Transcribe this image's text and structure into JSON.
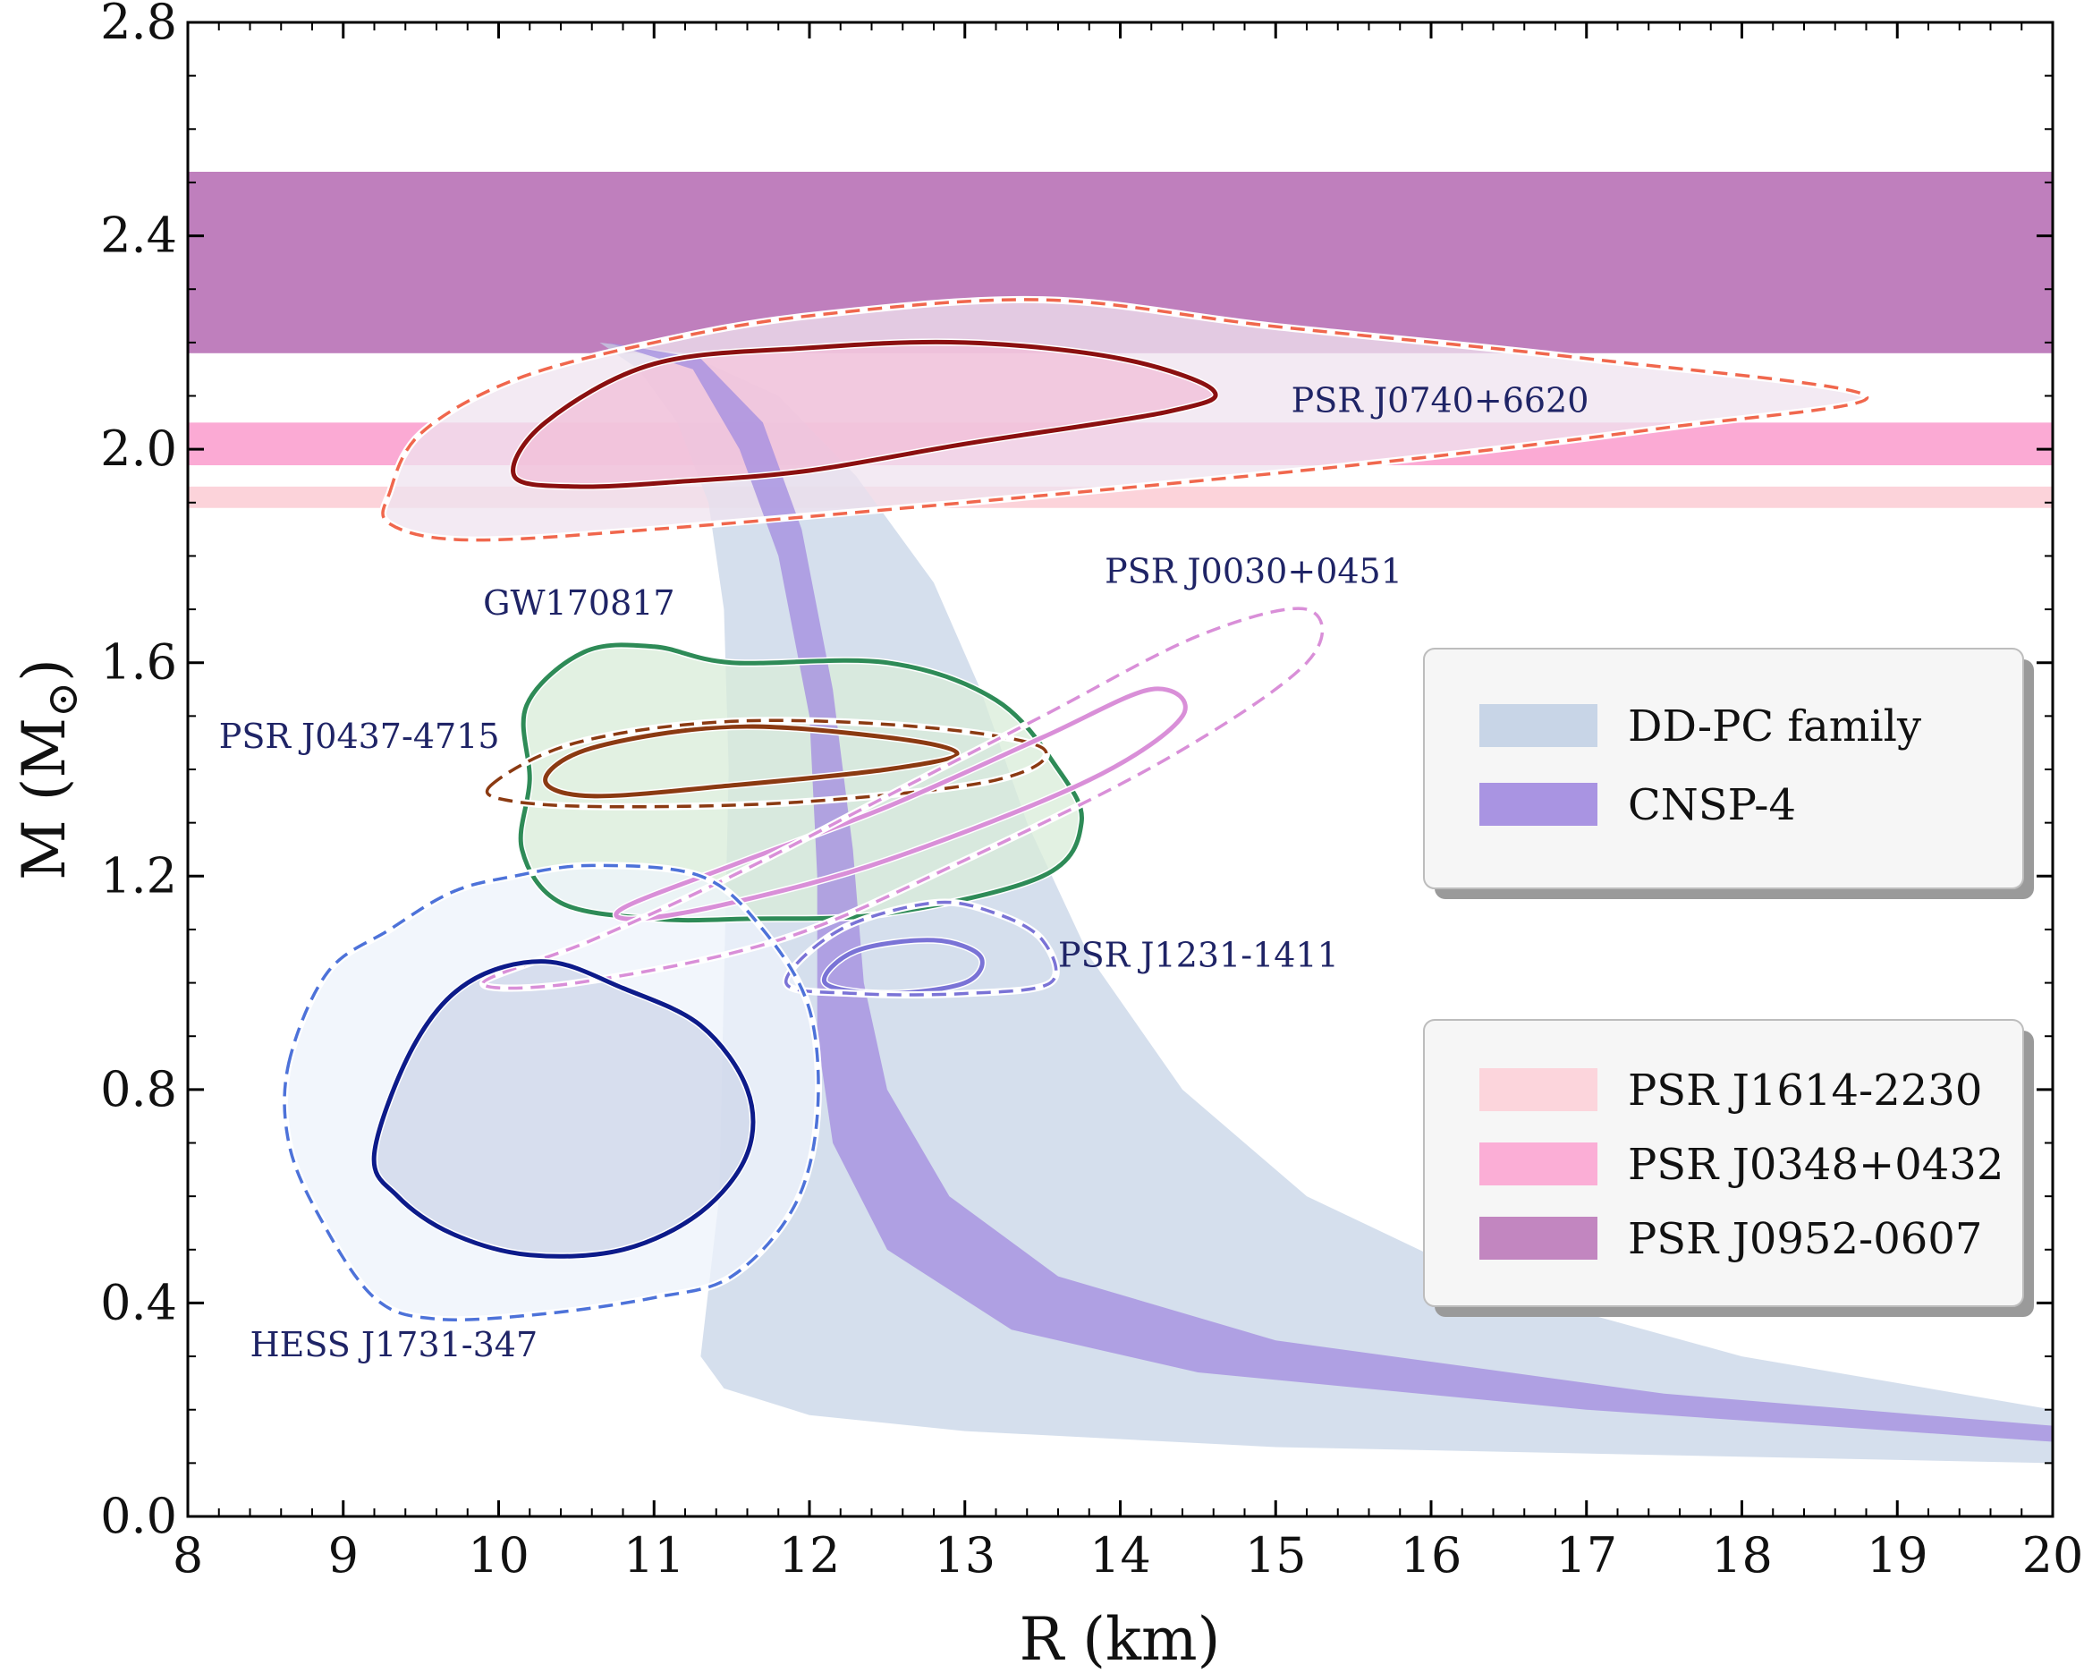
{
  "chart_data": {
    "type": "scatter",
    "title": "",
    "xlabel": "R (km)",
    "ylabel_main": "M (M",
    "ylabel_close": ")",
    "xlim": [
      8,
      20
    ],
    "ylim": [
      0.0,
      2.8
    ],
    "x_ticks": [
      8,
      9,
      10,
      11,
      12,
      13,
      14,
      15,
      16,
      17,
      18,
      19,
      20
    ],
    "x_tick_labels": [
      "8",
      "9",
      "10",
      "11",
      "12",
      "13",
      "14",
      "15",
      "16",
      "17",
      "18",
      "19",
      "20"
    ],
    "y_ticks": [
      0.0,
      0.4,
      0.8,
      1.2,
      1.6,
      2.0,
      2.4,
      2.8
    ],
    "y_tick_labels": [
      "0.0",
      "0.4",
      "0.8",
      "1.2",
      "1.6",
      "2.0",
      "2.4",
      "2.8"
    ],
    "colors": {
      "dd_pc": "#c5d3e6",
      "cnsp": "#a48ee0",
      "j1614": "#fcd3da",
      "j0348": "#fbaad4",
      "j0952": "#bf7fbd",
      "j0740_inner": "#8b1010",
      "j0740_outer": "#f0674d",
      "gw": "#2e8b57",
      "j0437": "#8b3a12",
      "j0030": "#d98fd8",
      "j1231": "#7a73d6",
      "hess_inner": "#0d1b8a",
      "hess_outer": "#4d72d9",
      "annotation": "#1f2466"
    },
    "mass_bands": [
      {
        "name": "PSR J1614-2230",
        "mass_range": [
          1.89,
          1.93
        ],
        "color": "#fcd3da"
      },
      {
        "name": "PSR J0348+0432",
        "mass_range": [
          1.97,
          2.05
        ],
        "color": "#fbaad4"
      },
      {
        "name": "PSR J0952-0607",
        "mass_range": [
          2.18,
          2.52
        ],
        "color": "#bf7fbd"
      }
    ],
    "dd_pc_band": {
      "left": [
        [
          10.65,
          2.2
        ],
        [
          10.9,
          2.15
        ],
        [
          11.15,
          2.05
        ],
        [
          11.35,
          1.9
        ],
        [
          11.45,
          1.7
        ],
        [
          11.48,
          1.4
        ],
        [
          11.45,
          1.0
        ],
        [
          11.42,
          0.6
        ],
        [
          11.3,
          0.3
        ],
        [
          11.45,
          0.24
        ],
        [
          12.0,
          0.19
        ],
        [
          13.0,
          0.16
        ],
        [
          15.0,
          0.13
        ],
        [
          20.0,
          0.1
        ]
      ],
      "right": [
        [
          10.65,
          2.2
        ],
        [
          11.2,
          2.18
        ],
        [
          11.8,
          2.1
        ],
        [
          12.3,
          1.95
        ],
        [
          12.8,
          1.75
        ],
        [
          13.1,
          1.55
        ],
        [
          13.4,
          1.3
        ],
        [
          13.8,
          1.05
        ],
        [
          14.4,
          0.8
        ],
        [
          15.2,
          0.6
        ],
        [
          16.5,
          0.42
        ],
        [
          18.0,
          0.3
        ],
        [
          20.0,
          0.2
        ]
      ]
    },
    "cnsp_band": {
      "left": [
        [
          10.7,
          2.2
        ],
        [
          11.25,
          2.15
        ],
        [
          11.55,
          2.0
        ],
        [
          11.8,
          1.8
        ],
        [
          12.0,
          1.5
        ],
        [
          12.05,
          1.2
        ],
        [
          12.05,
          0.9
        ],
        [
          12.15,
          0.7
        ],
        [
          12.5,
          0.5
        ],
        [
          13.3,
          0.35
        ],
        [
          14.5,
          0.27
        ],
        [
          17.0,
          0.2
        ],
        [
          20.0,
          0.14
        ]
      ],
      "right": [
        [
          10.7,
          2.2
        ],
        [
          11.3,
          2.17
        ],
        [
          11.7,
          2.05
        ],
        [
          11.95,
          1.85
        ],
        [
          12.15,
          1.55
        ],
        [
          12.28,
          1.25
        ],
        [
          12.35,
          1.0
        ],
        [
          12.5,
          0.8
        ],
        [
          12.9,
          0.6
        ],
        [
          13.6,
          0.45
        ],
        [
          15.0,
          0.33
        ],
        [
          17.5,
          0.23
        ],
        [
          20.0,
          0.17
        ]
      ]
    },
    "contours": [
      {
        "name": "PSR J0740+6620 outer",
        "style": "dashed",
        "color": "#f0674d",
        "fill": "#efe3ef",
        "points": [
          [
            9.3,
            1.92
          ],
          [
            9.5,
            2.03
          ],
          [
            10.1,
            2.13
          ],
          [
            11.0,
            2.2
          ],
          [
            12.0,
            2.25
          ],
          [
            13.5,
            2.28
          ],
          [
            15.0,
            2.23
          ],
          [
            17.0,
            2.17
          ],
          [
            18.8,
            2.1
          ],
          [
            17.5,
            2.04
          ],
          [
            15.5,
            1.97
          ],
          [
            13.0,
            1.9
          ],
          [
            11.0,
            1.85
          ],
          [
            9.8,
            1.83
          ],
          [
            9.3,
            1.86
          ]
        ]
      },
      {
        "name": "PSR J0740+6620 inner",
        "style": "solid",
        "color": "#8b1010",
        "fill": "#f2bed8",
        "points": [
          [
            10.1,
            1.95
          ],
          [
            10.3,
            2.05
          ],
          [
            11.0,
            2.16
          ],
          [
            12.0,
            2.19
          ],
          [
            13.0,
            2.2
          ],
          [
            14.0,
            2.17
          ],
          [
            14.6,
            2.11
          ],
          [
            14.3,
            2.07
          ],
          [
            13.0,
            2.01
          ],
          [
            12.0,
            1.96
          ],
          [
            11.2,
            1.94
          ],
          [
            10.5,
            1.93
          ]
        ]
      },
      {
        "name": "GW170817",
        "style": "solid",
        "color": "#2e8b57",
        "fill": "#d8ecd8",
        "points": [
          [
            10.4,
            1.15
          ],
          [
            10.15,
            1.25
          ],
          [
            10.2,
            1.38
          ],
          [
            10.18,
            1.52
          ],
          [
            10.55,
            1.62
          ],
          [
            11.0,
            1.63
          ],
          [
            11.5,
            1.6
          ],
          [
            12.5,
            1.6
          ],
          [
            13.2,
            1.53
          ],
          [
            13.6,
            1.4
          ],
          [
            13.75,
            1.3
          ],
          [
            13.5,
            1.2
          ],
          [
            12.5,
            1.13
          ],
          [
            11.6,
            1.12
          ],
          [
            11.0,
            1.12
          ]
        ]
      },
      {
        "name": "PSR J0437-4715 inner",
        "style": "solid",
        "color": "#8b3a12",
        "fill": "none",
        "points": [
          [
            10.3,
            1.38
          ],
          [
            10.6,
            1.44
          ],
          [
            11.5,
            1.48
          ],
          [
            12.5,
            1.46
          ],
          [
            12.95,
            1.43
          ],
          [
            12.5,
            1.4
          ],
          [
            11.5,
            1.37
          ],
          [
            10.6,
            1.35
          ]
        ]
      },
      {
        "name": "PSR J0437-4715 outer",
        "style": "dashed",
        "color": "#8b3a12",
        "fill": "none",
        "points": [
          [
            9.95,
            1.37
          ],
          [
            10.5,
            1.45
          ],
          [
            11.5,
            1.49
          ],
          [
            12.7,
            1.48
          ],
          [
            13.5,
            1.44
          ],
          [
            13.2,
            1.38
          ],
          [
            12.0,
            1.34
          ],
          [
            10.8,
            1.33
          ],
          [
            10.1,
            1.34
          ]
        ]
      },
      {
        "name": "PSR J0030+0451 inner",
        "style": "solid",
        "color": "#d98fd8",
        "fill": "none",
        "points": [
          [
            10.8,
            1.14
          ],
          [
            11.5,
            1.22
          ],
          [
            12.5,
            1.33
          ],
          [
            13.5,
            1.46
          ],
          [
            14.2,
            1.55
          ],
          [
            14.4,
            1.5
          ],
          [
            13.8,
            1.38
          ],
          [
            12.5,
            1.23
          ],
          [
            11.5,
            1.15
          ],
          [
            10.9,
            1.12
          ]
        ]
      },
      {
        "name": "PSR J0030+0451 outer",
        "style": "dashed",
        "color": "#d98fd8",
        "fill": "none",
        "points": [
          [
            9.9,
            1.0
          ],
          [
            10.6,
            1.08
          ],
          [
            11.5,
            1.2
          ],
          [
            12.5,
            1.35
          ],
          [
            13.5,
            1.5
          ],
          [
            14.5,
            1.65
          ],
          [
            15.2,
            1.7
          ],
          [
            15.2,
            1.6
          ],
          [
            14.3,
            1.42
          ],
          [
            13.0,
            1.23
          ],
          [
            11.8,
            1.08
          ],
          [
            10.5,
            1.0
          ]
        ]
      },
      {
        "name": "PSR J1231-1411 inner",
        "style": "solid",
        "color": "#7a73d6",
        "fill": "none",
        "points": [
          [
            12.1,
            1.0
          ],
          [
            12.3,
            1.06
          ],
          [
            12.8,
            1.08
          ],
          [
            13.1,
            1.05
          ],
          [
            13.0,
            1.0
          ],
          [
            12.5,
            0.98
          ]
        ]
      },
      {
        "name": "PSR J1231-1411 outer",
        "style": "dashed",
        "color": "#7a73d6",
        "fill": "none",
        "points": [
          [
            11.85,
            1.0
          ],
          [
            12.2,
            1.1
          ],
          [
            12.8,
            1.15
          ],
          [
            13.2,
            1.13
          ],
          [
            13.5,
            1.08
          ],
          [
            13.55,
            1.0
          ],
          [
            13.0,
            0.98
          ],
          [
            12.3,
            0.98
          ]
        ]
      },
      {
        "name": "HESS J1731-347 outer",
        "style": "dashed",
        "color": "#4d72d9",
        "fill": "#eef3fb",
        "points": [
          [
            8.65,
            0.85
          ],
          [
            8.9,
            1.02
          ],
          [
            9.3,
            1.1
          ],
          [
            9.7,
            1.17
          ],
          [
            10.1,
            1.2
          ],
          [
            10.6,
            1.22
          ],
          [
            11.3,
            1.2
          ],
          [
            11.7,
            1.1
          ],
          [
            12.0,
            0.95
          ],
          [
            12.05,
            0.75
          ],
          [
            11.9,
            0.58
          ],
          [
            11.5,
            0.45
          ],
          [
            11.0,
            0.41
          ],
          [
            10.3,
            0.38
          ],
          [
            9.6,
            0.37
          ],
          [
            9.2,
            0.41
          ],
          [
            8.85,
            0.56
          ],
          [
            8.65,
            0.7
          ]
        ]
      },
      {
        "name": "HESS J1731-347 inner",
        "style": "solid",
        "color": "#0d1b8a",
        "fill": "#cdd6ea",
        "points": [
          [
            9.2,
            0.68
          ],
          [
            9.45,
            0.88
          ],
          [
            9.8,
            1.0
          ],
          [
            10.3,
            1.04
          ],
          [
            10.8,
            0.99
          ],
          [
            11.3,
            0.92
          ],
          [
            11.6,
            0.8
          ],
          [
            11.6,
            0.68
          ],
          [
            11.3,
            0.57
          ],
          [
            10.8,
            0.5
          ],
          [
            10.2,
            0.49
          ],
          [
            9.7,
            0.53
          ],
          [
            9.35,
            0.6
          ]
        ]
      }
    ],
    "annotations": [
      {
        "text": "PSR J0740+6620",
        "x": 15.1,
        "y": 2.07
      },
      {
        "text": "PSR J0030+0451",
        "x": 13.9,
        "y": 1.75
      },
      {
        "text": "GW170817",
        "x": 9.9,
        "y": 1.69
      },
      {
        "text": "PSR J0437-4715",
        "x": 8.2,
        "y": 1.44
      },
      {
        "text": "PSR J1231-1411",
        "x": 13.6,
        "y": 1.03
      },
      {
        "text": "HESS J1731-347",
        "x": 8.4,
        "y": 0.3
      }
    ],
    "legend_upper": {
      "position": "right",
      "entries": [
        {
          "label": "DD-PC family",
          "color": "#c5d3e6"
        },
        {
          "label": "CNSP-4",
          "color": "#a48ee0"
        }
      ]
    },
    "legend_lower": {
      "position": "lower-right",
      "entries": [
        {
          "label": "PSR J1614-2230",
          "color": "#fcd3da"
        },
        {
          "label": "PSR J0348+0432",
          "color": "#fbaad4"
        },
        {
          "label": "PSR J0952-0607",
          "color": "#bf7fbd"
        }
      ]
    }
  }
}
